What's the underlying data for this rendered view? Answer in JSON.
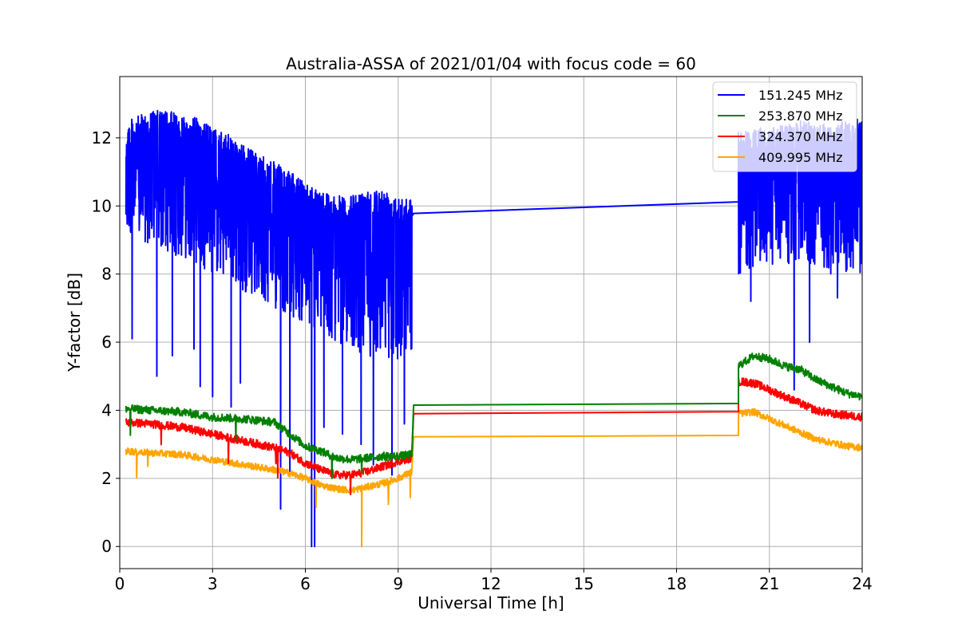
{
  "chart_data": {
    "type": "line",
    "title": "Australia-ASSA of 2021/01/04 with focus code = 60",
    "xlabel": "Universal Time [h]",
    "ylabel": "Y-factor [dB]",
    "xlim": [
      0,
      24
    ],
    "ylim": [
      -0.65,
      13.8
    ],
    "xticks": [
      0,
      3,
      6,
      9,
      12,
      15,
      18,
      21,
      24
    ],
    "xtick_labels": [
      "0",
      "3",
      "6",
      "9",
      "12",
      "15",
      "18",
      "21",
      "24"
    ],
    "yticks": [
      0,
      2,
      4,
      6,
      8,
      10,
      12
    ],
    "ytick_labels": [
      "0",
      "2",
      "4",
      "6",
      "8",
      "10",
      "12"
    ],
    "grid": true,
    "legend_position": "top-right",
    "series": [
      {
        "name": "151.245 MHz",
        "color": "#0000ff",
        "x": [
          0.2,
          0.5,
          1.0,
          1.5,
          2.0,
          2.5,
          3.0,
          3.5,
          4.0,
          4.5,
          5.0,
          5.5,
          6.0,
          6.5,
          7.0,
          7.5,
          8.0,
          8.5,
          9.0,
          9.45,
          20.0,
          20.5,
          21.0,
          21.5,
          22.0,
          22.5,
          23.0,
          23.5,
          24.0
        ],
        "upper": [
          12.5,
          12.6,
          12.8,
          12.8,
          12.7,
          12.6,
          12.3,
          12.1,
          11.8,
          11.5,
          11.3,
          11.0,
          10.7,
          10.5,
          10.3,
          10.3,
          10.5,
          10.5,
          10.4,
          10.2,
          12.2,
          12.3,
          12.3,
          12.4,
          12.5,
          12.5,
          12.4,
          12.5,
          12.6
        ],
        "lower": [
          9.0,
          9.0,
          8.8,
          8.6,
          8.5,
          8.3,
          8.0,
          7.8,
          7.5,
          7.3,
          7.0,
          6.8,
          6.5,
          6.2,
          6.0,
          5.8,
          5.6,
          5.5,
          5.5,
          5.8,
          8.0,
          8.2,
          8.3,
          8.2,
          8.3,
          8.2,
          8.0,
          8.0,
          8.0
        ],
        "spikes": [
          [
            0.4,
            6.1
          ],
          [
            1.2,
            5.0
          ],
          [
            1.7,
            5.6
          ],
          [
            2.4,
            5.8
          ],
          [
            2.6,
            4.7
          ],
          [
            3.0,
            4.4
          ],
          [
            3.6,
            4.1
          ],
          [
            3.9,
            4.8
          ],
          [
            5.2,
            1.1
          ],
          [
            5.5,
            2.2
          ],
          [
            6.2,
            0.0
          ],
          [
            6.3,
            0.0
          ],
          [
            6.6,
            3.5
          ],
          [
            7.2,
            3.3
          ],
          [
            7.8,
            3.0
          ],
          [
            8.2,
            2.4
          ],
          [
            8.8,
            2.1
          ],
          [
            9.2,
            3.6
          ],
          [
            20.4,
            7.2
          ],
          [
            21.8,
            4.6
          ],
          [
            22.3,
            6.0
          ],
          [
            23.2,
            7.3
          ]
        ],
        "gap": [
          [
            9.5,
            9.78
          ],
          [
            20.0,
            10.12
          ]
        ]
      },
      {
        "name": "253.870 MHz",
        "color": "#008000",
        "x": [
          0.2,
          1.0,
          2.0,
          3.0,
          4.0,
          5.0,
          5.5,
          6.0,
          6.5,
          7.0,
          7.5,
          8.0,
          8.5,
          9.0,
          9.45,
          20.0,
          20.5,
          21.0,
          21.5,
          22.0,
          22.5,
          23.0,
          23.5,
          24.0
        ],
        "values": [
          4.05,
          4.0,
          3.95,
          3.8,
          3.75,
          3.65,
          3.3,
          2.95,
          2.8,
          2.6,
          2.55,
          2.6,
          2.65,
          2.65,
          2.7,
          5.3,
          5.6,
          5.5,
          5.3,
          5.2,
          4.9,
          4.7,
          4.5,
          4.4
        ],
        "gap": [
          [
            9.5,
            4.15
          ],
          [
            20.0,
            4.2
          ]
        ],
        "noise": 0.12
      },
      {
        "name": "324.370 MHz",
        "color": "#ff0000",
        "x": [
          0.2,
          1.0,
          2.0,
          3.0,
          4.0,
          5.0,
          5.5,
          6.0,
          6.5,
          7.0,
          7.5,
          8.0,
          8.5,
          9.0,
          9.45,
          20.0,
          20.5,
          21.0,
          21.5,
          22.0,
          22.5,
          23.0,
          23.5,
          24.0
        ],
        "values": [
          3.65,
          3.6,
          3.5,
          3.3,
          3.1,
          2.9,
          2.75,
          2.45,
          2.25,
          2.1,
          2.1,
          2.2,
          2.35,
          2.5,
          2.6,
          4.85,
          4.8,
          4.6,
          4.4,
          4.2,
          4.0,
          3.9,
          3.85,
          3.8
        ],
        "gap": [
          [
            9.5,
            3.9
          ],
          [
            20.0,
            3.96
          ]
        ],
        "noise": 0.12
      },
      {
        "name": "409.995 MHz",
        "color": "#ffa500",
        "x": [
          0.2,
          1.0,
          2.0,
          3.0,
          4.0,
          5.0,
          5.5,
          6.0,
          6.5,
          7.0,
          7.5,
          8.0,
          8.5,
          9.0,
          9.45,
          20.0,
          20.5,
          21.0,
          21.5,
          22.0,
          22.5,
          23.0,
          23.5,
          24.0
        ],
        "values": [
          2.8,
          2.75,
          2.7,
          2.55,
          2.4,
          2.25,
          2.15,
          2.0,
          1.8,
          1.7,
          1.65,
          1.75,
          1.85,
          2.0,
          2.2,
          3.9,
          3.95,
          3.75,
          3.55,
          3.35,
          3.15,
          3.05,
          2.95,
          2.9
        ],
        "gap": [
          [
            9.5,
            3.22
          ],
          [
            20.0,
            3.26
          ]
        ],
        "noise": 0.1
      }
    ]
  }
}
